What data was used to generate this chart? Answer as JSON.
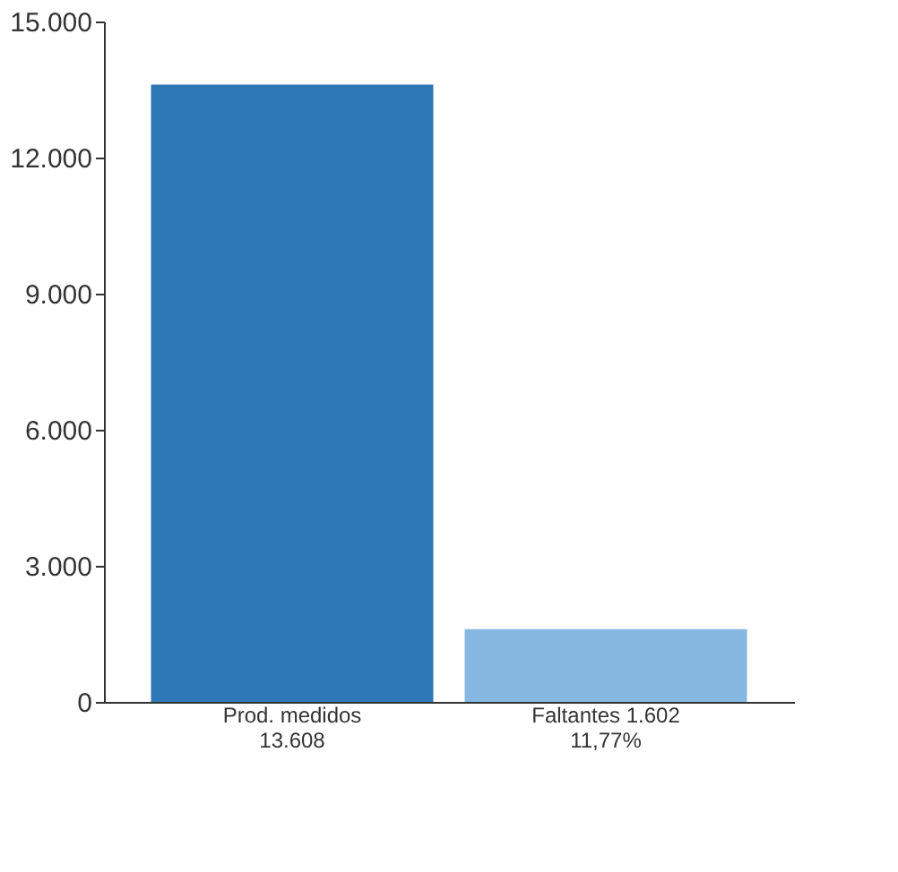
{
  "chart_data": {
    "type": "bar",
    "categories": [
      "Prod. medidos\n13.608",
      "Faltantes 1.602\n11,77%"
    ],
    "values": [
      13608,
      1602
    ],
    "colors": [
      "#2f78b8",
      "#86b8e2"
    ],
    "ylim": [
      0,
      15000
    ],
    "yticks": [
      {
        "value": 0,
        "label": "0"
      },
      {
        "value": 3000,
        "label": "3.000"
      },
      {
        "value": 6000,
        "label": "6.000"
      },
      {
        "value": 9000,
        "label": "9.000"
      },
      {
        "value": 12000,
        "label": "12.000"
      },
      {
        "value": 15000,
        "label": "15.000"
      }
    ],
    "grid": false
  }
}
